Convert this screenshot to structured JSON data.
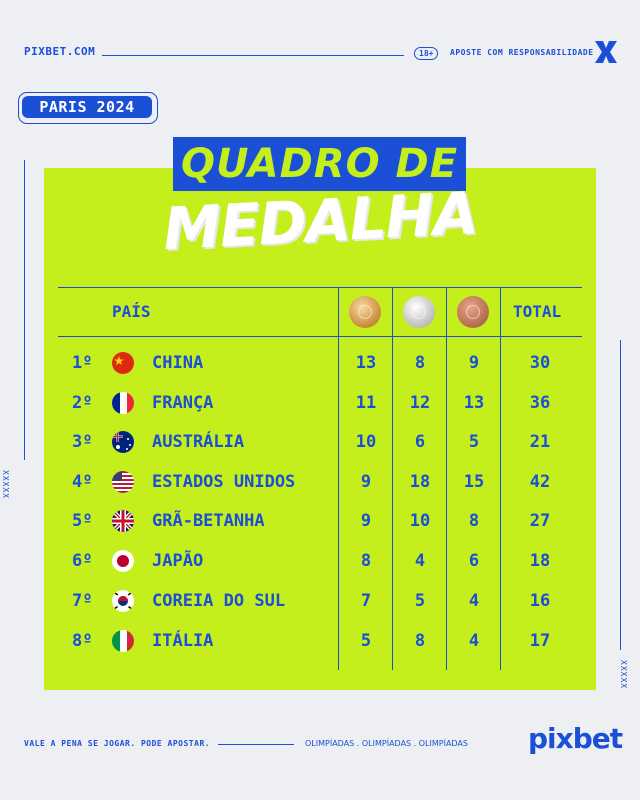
{
  "header": {
    "site": "PIXBET.COM",
    "age": "18+",
    "responsibility": "APOSTE COM RESPONSABILIDADE",
    "logo_icon": "x-logo-icon"
  },
  "badge": "PARIS 2024",
  "title": {
    "line1": "QUADRO DE",
    "line2": "MEDALHA"
  },
  "table": {
    "col_country": "PAÍS",
    "col_total": "TOTAL",
    "medal_icons": [
      "gold-medal-icon",
      "silver-medal-icon",
      "bronze-medal-icon"
    ],
    "rows": [
      {
        "rank": "1º",
        "country": "CHINA",
        "flag": "china-flag-icon",
        "gold": "13",
        "silver": "8",
        "bronze": "9",
        "total": "30"
      },
      {
        "rank": "2º",
        "country": "FRANÇA",
        "flag": "france-flag-icon",
        "gold": "11",
        "silver": "12",
        "bronze": "13",
        "total": "36"
      },
      {
        "rank": "3º",
        "country": "AUSTRÁLIA",
        "flag": "australia-flag-icon",
        "gold": "10",
        "silver": "6",
        "bronze": "5",
        "total": "21"
      },
      {
        "rank": "4º",
        "country": "ESTADOS UNIDOS",
        "flag": "usa-flag-icon",
        "gold": "9",
        "silver": "18",
        "bronze": "15",
        "total": "42"
      },
      {
        "rank": "5º",
        "country": "GRÃ-BETANHA",
        "flag": "uk-flag-icon",
        "gold": "9",
        "silver": "10",
        "bronze": "8",
        "total": "27"
      },
      {
        "rank": "6º",
        "country": "JAPÃO",
        "flag": "japan-flag-icon",
        "gold": "8",
        "silver": "4",
        "bronze": "6",
        "total": "18"
      },
      {
        "rank": "7º",
        "country": "COREIA DO SUL",
        "flag": "south-korea-flag-icon",
        "gold": "7",
        "silver": "5",
        "bronze": "4",
        "total": "16"
      },
      {
        "rank": "8º",
        "country": "ITÁLIA",
        "flag": "italy-flag-icon",
        "gold": "5",
        "silver": "8",
        "bronze": "4",
        "total": "17"
      }
    ]
  },
  "side_marks": "XXXXX",
  "footer": {
    "slogan": "VALE A PENA SE JOGAR. PODE APOSTAR.",
    "tagline": "OLIMPÍADAS . OLIMPÍADAS . OLIMPÍADAS",
    "brand": "pixbet"
  },
  "colors": {
    "blue": "#1a4fd6",
    "lime": "#c4ee1c",
    "background": "#eeeff2"
  }
}
